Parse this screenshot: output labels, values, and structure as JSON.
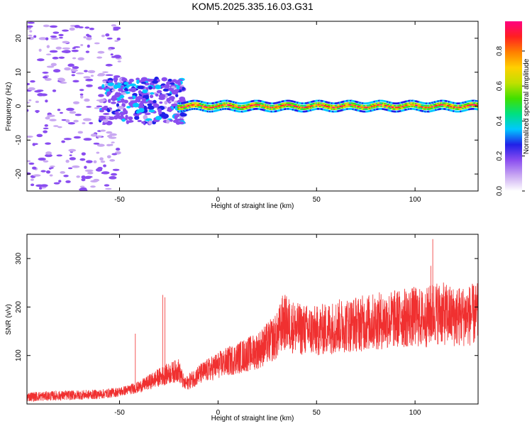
{
  "title": "KOM5.2025.335.16.03.G31",
  "colors": {
    "snr_line": "#f03030",
    "background": "#ffffff",
    "axis": "#000000"
  },
  "chart_data": [
    {
      "type": "heatmap",
      "title": "KOM5.2025.335.16.03.G31",
      "xlabel": "Height of straight line (km)",
      "ylabel": "Frequency (Hz)",
      "xlim": [
        -97,
        132
      ],
      "ylim": [
        -25,
        25
      ],
      "xticks": [
        -50,
        0,
        50,
        100
      ],
      "xtick_labels": [
        "-50",
        "0",
        "50",
        "100"
      ],
      "yticks": [
        -20,
        -10,
        0,
        10,
        20
      ],
      "ytick_labels": [
        "-20",
        "-10",
        "0",
        "10",
        "20"
      ],
      "grid": false,
      "colorbar": {
        "label": "Normalized spectral amplitude",
        "range": [
          0,
          0.97
        ],
        "ticks": [
          0,
          0.2,
          0.4,
          0.6,
          0.8
        ],
        "tick_labels": [
          "0.0",
          "0.2",
          "0.4",
          "0.6",
          "0.8"
        ],
        "colormap": "rainbow",
        "colors": [
          "#ffffff",
          "#c9a8f2",
          "#8a4df0",
          "#2020e8",
          "#00c8ff",
          "#00e080",
          "#40e000",
          "#c0e000",
          "#ffd000",
          "#ff8000",
          "#ff2020",
          "#ff0080"
        ]
      },
      "structures": [
        {
          "label": "noise",
          "x_range": [
            -97,
            -50
          ],
          "f_range": [
            -25,
            25
          ],
          "amplitude": 0.1
        },
        {
          "label": "dense",
          "x_range": [
            -60,
            -17
          ],
          "f_range": [
            -5,
            8
          ],
          "amplitude": 0.25
        },
        {
          "label": "carrier",
          "x_range": [
            -20,
            132
          ],
          "f_center": 0,
          "amplitude": 0.95
        }
      ]
    },
    {
      "type": "line",
      "xlabel": "Height of straight line (km)",
      "ylabel": "SNR (v/v)",
      "xlim": [
        -97,
        132
      ],
      "ylim": [
        0,
        350
      ],
      "xticks": [
        -50,
        0,
        50,
        100
      ],
      "xtick_labels": [
        "-50",
        "0",
        "50",
        "100"
      ],
      "yticks": [
        100,
        200,
        300
      ],
      "ytick_labels": [
        "100",
        "200",
        "300"
      ],
      "grid": false,
      "trend": {
        "x": [
          -97,
          -60,
          -50,
          -40,
          -30,
          -20,
          -17,
          -10,
          0,
          10,
          20,
          30,
          33,
          40,
          50,
          60,
          70,
          80,
          90,
          100,
          105,
          110,
          120,
          132
        ],
        "y": [
          15,
          20,
          25,
          35,
          55,
          70,
          40,
          60,
          80,
          95,
          110,
          140,
          170,
          155,
          150,
          160,
          165,
          170,
          175,
          180,
          175,
          190,
          180,
          185
        ]
      },
      "spikes": {
        "x": [
          -42,
          -28,
          -27,
          33,
          93,
          108,
          109
        ],
        "y": [
          145,
          225,
          220,
          200,
          210,
          285,
          340
        ]
      }
    }
  ]
}
